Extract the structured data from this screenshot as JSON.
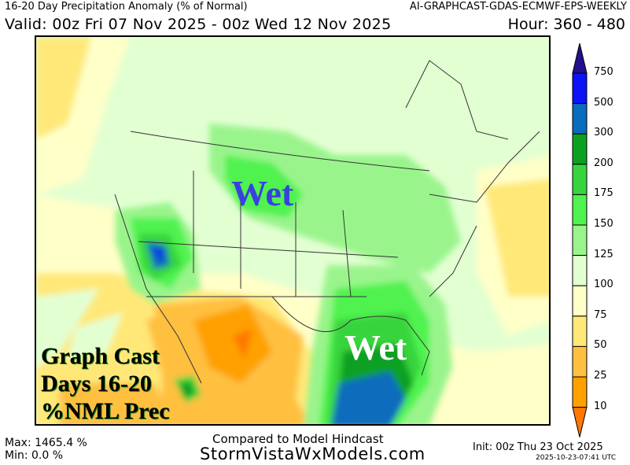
{
  "header": {
    "title": "16-20 Day Precipitation Anomaly (% of Normal)",
    "model": "AI-GRAPHCAST-GDAS-ECMWF-EPS-WEEKLY",
    "valid": "Valid: 00z Fri 07 Nov 2025 - 00z Wed 12 Nov 2025",
    "hour": "Hour: 360 - 480"
  },
  "map": {
    "annotations": [
      "Wet",
      "Wet"
    ],
    "overlay_lines": [
      "Graph Cast",
      "Days 16-20",
      "%NML Prec"
    ]
  },
  "colorbar": {
    "labels": [
      "750",
      "500",
      "300",
      "200",
      "175",
      "150",
      "125",
      "100",
      "75",
      "50",
      "25",
      "10"
    ],
    "colors": {
      "above_750": "#22108e",
      "500_750": "#0a14f5",
      "300_500": "#0a6cbc",
      "200_300": "#0ca020",
      "175_200": "#38d43e",
      "150_175": "#50f250",
      "125_150": "#9af48c",
      "100_125": "#e2ffd2",
      "75_100": "#ffffc8",
      "50_75": "#ffe878",
      "25_50": "#ffc040",
      "10_25": "#ffa000",
      "below_10": "#ff7800"
    }
  },
  "footer": {
    "max": "Max: 1465.4 %",
    "min": "Min: 0.0 %",
    "compared": "Compared to Model Hindcast",
    "site": "StormVistaWxModels.com",
    "init": "Init: 00z Thu 23 Oct 2025",
    "stamp": "2025-10-23-07:41 UTC"
  }
}
